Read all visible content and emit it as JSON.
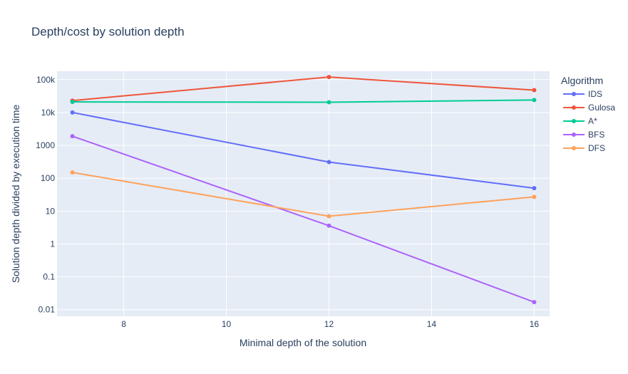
{
  "chart_data": {
    "type": "line",
    "title": "Depth/cost by solution depth",
    "xlabel": "Minimal depth of the solution",
    "ylabel": "Solution depth divided by execution time",
    "x": [
      7,
      12,
      16
    ],
    "xlim": [
      6.7,
      16.3
    ],
    "x_ticks": [
      8,
      10,
      12,
      14,
      16
    ],
    "x_tick_labels": [
      "8",
      "10",
      "12",
      "14",
      "16"
    ],
    "y_scale": "log",
    "ylim": [
      0.0063,
      180000
    ],
    "y_ticks": [
      0.01,
      0.1,
      1,
      10,
      100,
      1000,
      10000,
      100000
    ],
    "y_tick_labels": [
      "0.01",
      "0.1",
      "1",
      "10",
      "100",
      "1000",
      "10k",
      "100k"
    ],
    "grid": true,
    "legend": {
      "title": "Algorithm",
      "position": "right"
    },
    "series": [
      {
        "name": "IDS",
        "color": "#636efa",
        "values": [
          10000,
          310,
          50
        ]
      },
      {
        "name": "Gulosa",
        "color": "#ef553b",
        "values": [
          23000,
          120000,
          48000
        ]
      },
      {
        "name": "A*",
        "color": "#00cc96",
        "values": [
          21000,
          20500,
          24000
        ]
      },
      {
        "name": "BFS",
        "color": "#ab63fa",
        "values": [
          1900,
          3.6,
          0.017
        ]
      },
      {
        "name": "DFS",
        "color": "#ffa15a",
        "values": [
          150,
          7,
          27
        ]
      }
    ]
  }
}
